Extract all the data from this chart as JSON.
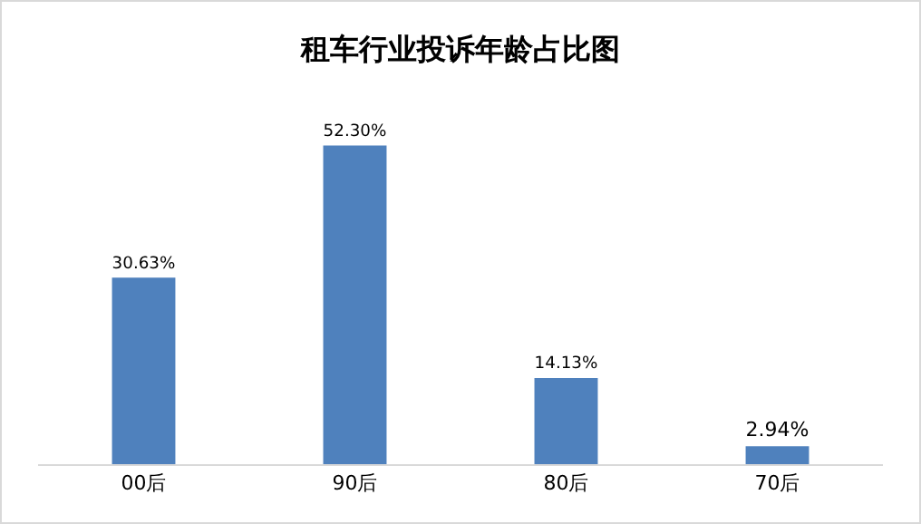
{
  "chart_data": {
    "type": "bar",
    "title": "租车行业投诉年龄占比图",
    "categories": [
      "00后",
      "90后",
      "80后",
      "70后"
    ],
    "values": [
      30.63,
      52.3,
      14.13,
      2.94
    ],
    "value_labels": [
      "30.63%",
      "52.30%",
      "14.13%",
      "2.94%"
    ],
    "color": "#4f81bd",
    "grid": false,
    "legend": false
  }
}
